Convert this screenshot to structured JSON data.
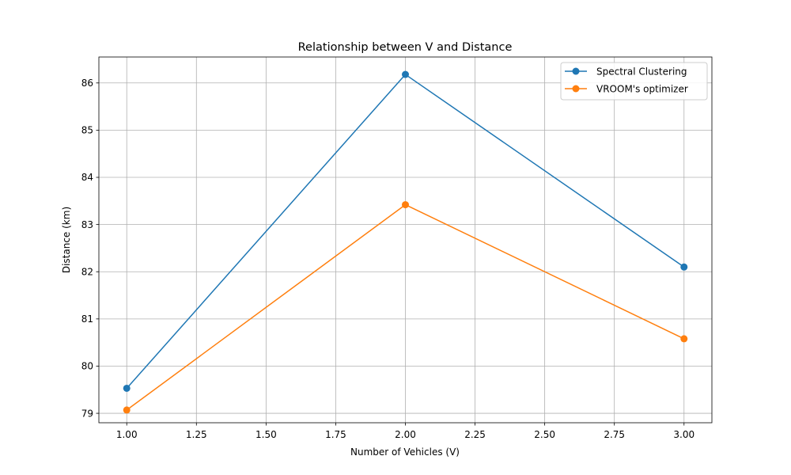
{
  "chart_data": {
    "type": "line",
    "title": "Relationship between V and Distance",
    "xlabel": "Number of Vehicles (V)",
    "ylabel": "Distance (km)",
    "xlim": [
      0.9,
      3.1
    ],
    "ylim": [
      78.8,
      86.55
    ],
    "xticks": [
      1.0,
      1.25,
      1.5,
      1.75,
      2.0,
      2.25,
      2.5,
      2.75,
      3.0
    ],
    "xtick_labels": [
      "1.00",
      "1.25",
      "1.50",
      "1.75",
      "2.00",
      "2.25",
      "2.50",
      "2.75",
      "3.00"
    ],
    "yticks": [
      79,
      80,
      81,
      82,
      83,
      84,
      85,
      86
    ],
    "ytick_labels": [
      "79",
      "80",
      "81",
      "82",
      "83",
      "84",
      "85",
      "86"
    ],
    "grid": true,
    "legend_position": "top-right",
    "x": [
      1,
      2,
      3
    ],
    "series": [
      {
        "name": "Spectral Clustering",
        "color": "#1f77b4",
        "marker": "circle",
        "values": [
          79.53,
          86.18,
          82.1
        ]
      },
      {
        "name": "VROOM's optimizer",
        "color": "#ff7f0e",
        "marker": "circle",
        "values": [
          79.07,
          83.42,
          80.58
        ]
      }
    ]
  }
}
